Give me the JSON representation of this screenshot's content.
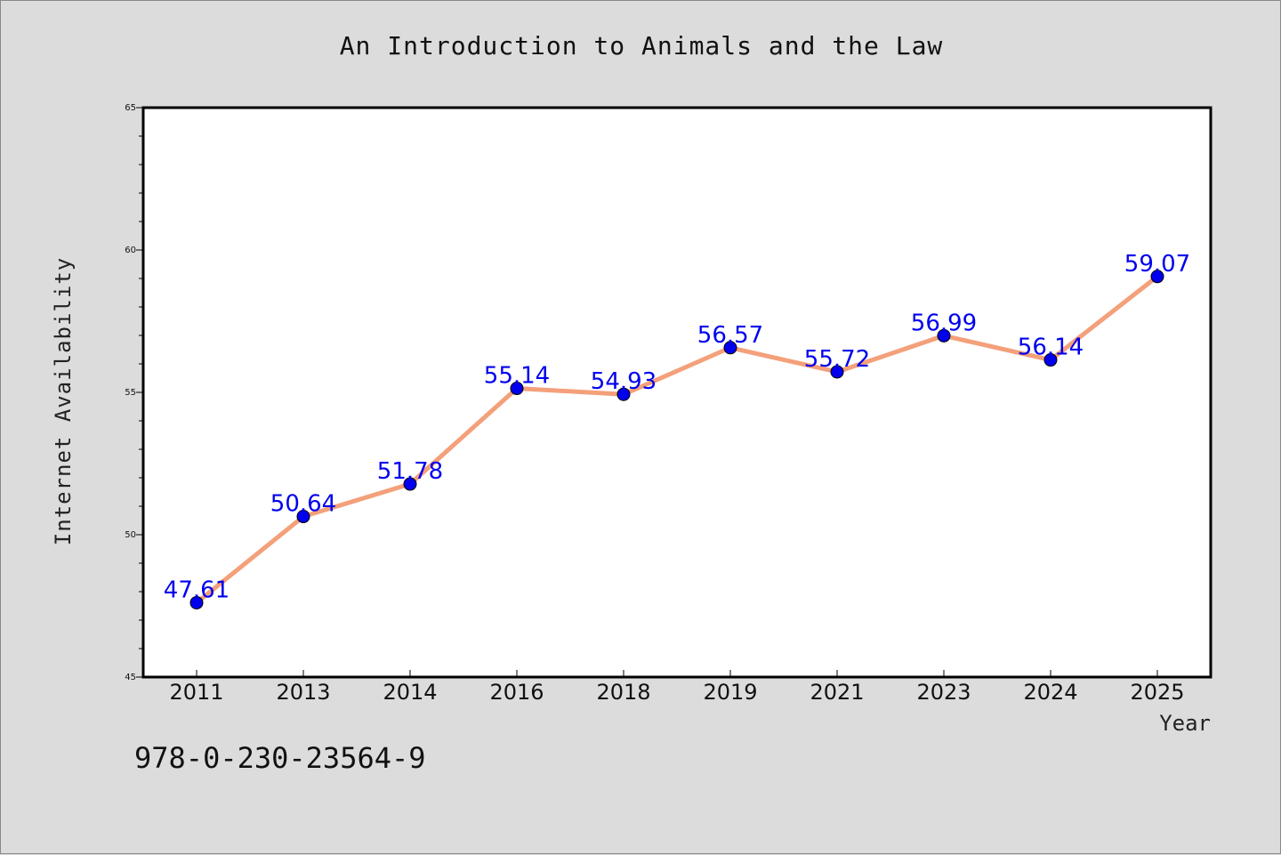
{
  "footer_text": "978-0-230-23564-9",
  "chart_data": {
    "type": "line",
    "title": "An Introduction to Animals and the Law",
    "xlabel": "Year",
    "ylabel": "Internet Availability",
    "categories": [
      "2011",
      "2013",
      "2014",
      "2016",
      "2018",
      "2019",
      "2021",
      "2023",
      "2024",
      "2025"
    ],
    "series": [
      {
        "values": [
          47.61,
          50.64,
          51.78,
          55.14,
          54.93,
          56.57,
          55.72,
          56.99,
          56.14,
          59.07
        ],
        "line_color": "#f4a07a",
        "marker_color": "#0000ee"
      }
    ],
    "data_labels": [
      "47.61",
      "50.64",
      "51.78",
      "55.14",
      "54.93",
      "56.57",
      "55.72",
      "56.99",
      "56.14",
      "59.07"
    ],
    "ylim": [
      45,
      65
    ],
    "yticks": [
      45,
      50,
      55,
      60,
      65
    ],
    "grid": false,
    "legend": "none"
  }
}
